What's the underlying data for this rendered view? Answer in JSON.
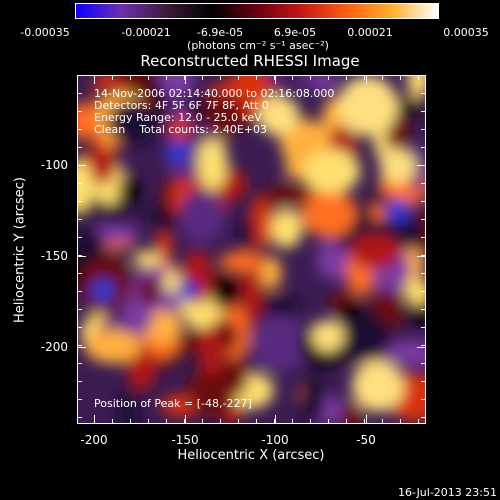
{
  "colorbar": {
    "ticks": [
      "-0.00035",
      "-0.00021",
      "-6.9e-05",
      "6.9e-05",
      "0.00021",
      "0.00035"
    ],
    "unit": "(photons cm⁻² s⁻¹ asec⁻²)",
    "gradient_colors": [
      "#0a00ff",
      "#6e2fb0",
      "#3a1c3a",
      "#000000",
      "#6a0010",
      "#c81818",
      "#ff6010",
      "#ffb030",
      "#ffffff"
    ]
  },
  "title": "Reconstructed RHESSI Image",
  "annotations": {
    "line1": "14-Nov-2006 02:14:40.000 to 02:16:08.000",
    "line2": "Detectors: 4F 5F 6F 7F 8F, Att 0",
    "line3": "Energy Range: 12.0 - 25.0 keV",
    "line4": "Clean    Total counts: 2.40E+03",
    "peak": "Position of Peak = [-48,-227]"
  },
  "axes": {
    "xlabel": "Heliocentric X (arcsec)",
    "ylabel": "Heliocentric Y (arcsec)",
    "xticks": [
      "-200",
      "-150",
      "-100",
      "-50"
    ],
    "yticks": [
      "-100",
      "-150",
      "-200"
    ]
  },
  "timestamp": "16-Jul-2013 23:51"
}
